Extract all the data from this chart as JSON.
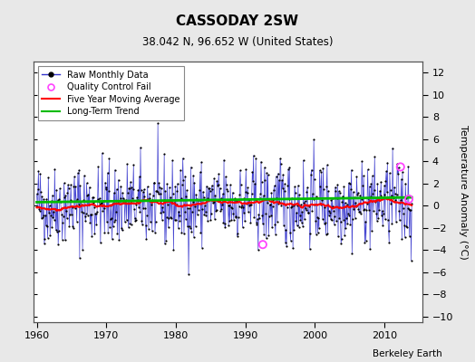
{
  "title": "CASSODAY 2SW",
  "subtitle": "38.042 N, 96.652 W (United States)",
  "ylabel": "Temperature Anomaly (°C)",
  "credit": "Berkeley Earth",
  "xlim": [
    1959.5,
    2015.5
  ],
  "ylim": [
    -10.5,
    13
  ],
  "yticks": [
    -10,
    -8,
    -6,
    -4,
    -2,
    0,
    2,
    4,
    6,
    8,
    10,
    12
  ],
  "xticks": [
    1960,
    1970,
    1980,
    1990,
    2000,
    2010
  ],
  "bg_color": "#e8e8e8",
  "plot_bg_color": "#ffffff",
  "grid_color": "#cccccc",
  "seed": 42,
  "n_months": 648,
  "start_year": 1960,
  "trend_slope": 0.012,
  "trend_intercept": 0.3,
  "moving_avg_color": "#ff0000",
  "trend_color": "#00bb00",
  "raw_line_color": "#3333cc",
  "raw_dot_color": "#000000",
  "qc_fail_color": "#ff44ff",
  "qc_fail_points": [
    {
      "year": 1992.5,
      "value": -3.5
    },
    {
      "year": 2012.3,
      "value": 3.5
    },
    {
      "year": 2013.5,
      "value": 0.6
    }
  ],
  "title_fontsize": 11,
  "subtitle_fontsize": 8.5,
  "tick_fontsize": 8,
  "legend_fontsize": 7,
  "credit_fontsize": 7.5
}
